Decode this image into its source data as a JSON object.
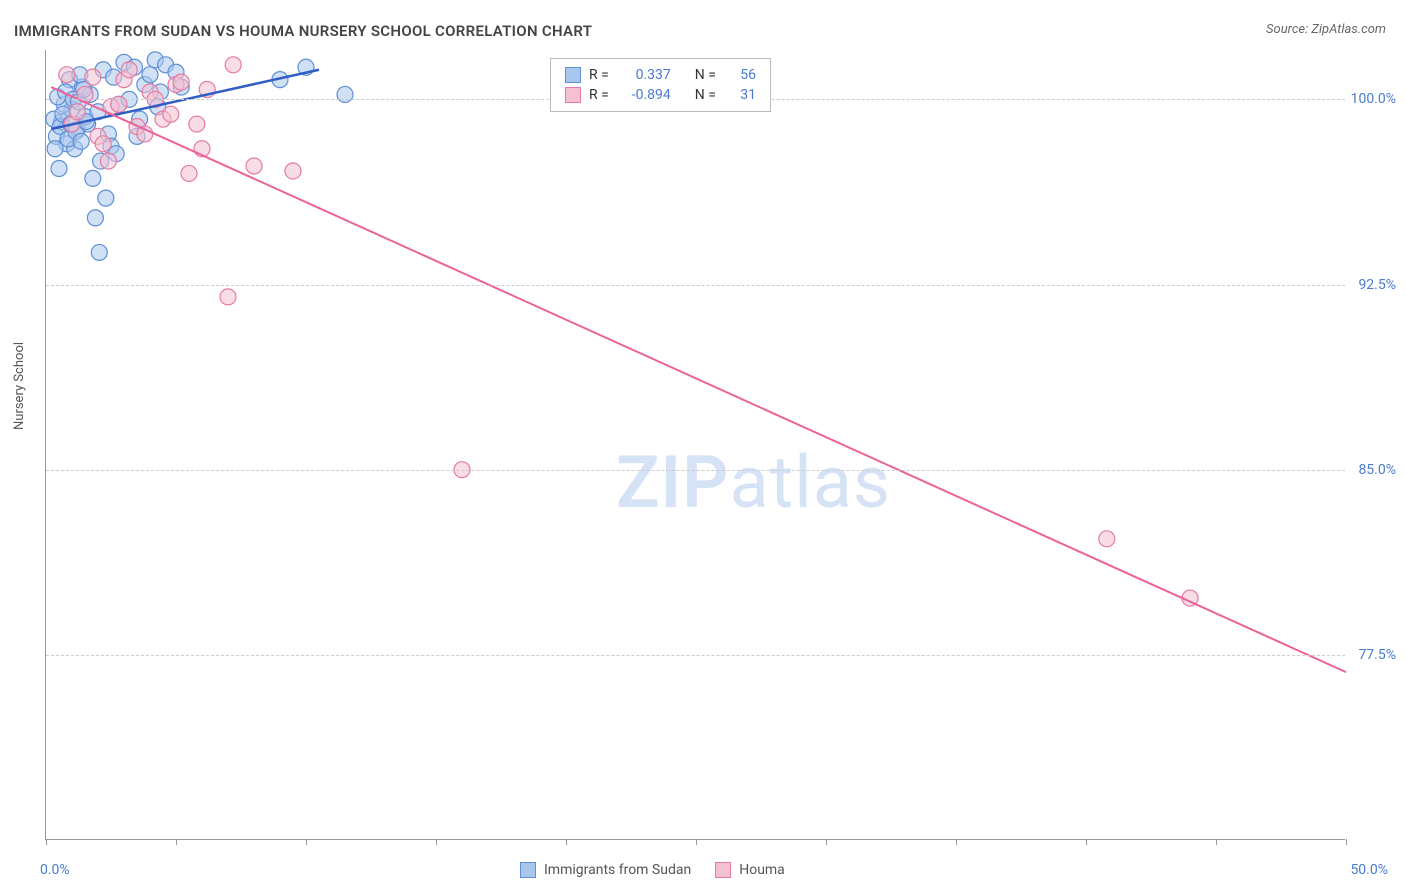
{
  "title": "IMMIGRANTS FROM SUDAN VS HOUMA NURSERY SCHOOL CORRELATION CHART",
  "source_label": "Source: ZipAtlas.com",
  "y_axis_label": "Nursery School",
  "watermark": {
    "bold": "ZIP",
    "light": "atlas"
  },
  "colors": {
    "series_a_fill": "#a9c6ed",
    "series_a_stroke": "#5f8fd6",
    "series_b_fill": "#f4c1d1",
    "series_b_stroke": "#e77aa3",
    "trend_a": "#2f5fc4",
    "trend_b": "#ec6399",
    "axis_text": "#4a7bd0",
    "grid": "#cccccc",
    "title_text": "#444444",
    "watermark": "#d6e2f5"
  },
  "chart": {
    "type": "scatter",
    "xlim": [
      0,
      50
    ],
    "ylim": [
      70,
      102
    ],
    "y_gridlines": [
      77.5,
      85.0,
      92.5,
      100.0
    ],
    "y_tick_labels": [
      "77.5%",
      "85.0%",
      "92.5%",
      "100.0%"
    ],
    "x_ticks": [
      0,
      5,
      10,
      15,
      20,
      25,
      30,
      35,
      40,
      45,
      50
    ],
    "x_tick_labels": {
      "0": "0.0%",
      "50": "50.0%"
    },
    "marker_radius": 8,
    "marker_opacity": 0.55,
    "line_width_a": 2.5,
    "line_width_b": 2,
    "series": {
      "a": {
        "label": "Immigrants from Sudan",
        "R": "0.337",
        "N": "56",
        "trend": {
          "x1": 0.2,
          "y1": 98.8,
          "x2": 10.5,
          "y2": 101.2
        },
        "points": [
          [
            0.4,
            98.5
          ],
          [
            0.6,
            99.1
          ],
          [
            0.8,
            98.2
          ],
          [
            1.0,
            99.6
          ],
          [
            1.2,
            98.8
          ],
          [
            1.4,
            100.5
          ],
          [
            1.6,
            99.0
          ],
          [
            0.5,
            97.2
          ],
          [
            0.7,
            99.8
          ],
          [
            0.9,
            100.8
          ],
          [
            1.1,
            98.0
          ],
          [
            1.3,
            101.0
          ],
          [
            1.5,
            99.3
          ],
          [
            1.7,
            100.2
          ],
          [
            2.0,
            99.5
          ],
          [
            2.2,
            101.2
          ],
          [
            2.4,
            98.6
          ],
          [
            2.6,
            100.9
          ],
          [
            2.8,
            99.8
          ],
          [
            3.0,
            101.5
          ],
          [
            3.2,
            100.0
          ],
          [
            3.4,
            101.3
          ],
          [
            3.6,
            99.2
          ],
          [
            3.8,
            100.6
          ],
          [
            4.0,
            101.0
          ],
          [
            4.2,
            101.6
          ],
          [
            4.4,
            100.3
          ],
          [
            4.6,
            101.4
          ],
          [
            1.8,
            96.8
          ],
          [
            2.1,
            97.5
          ],
          [
            2.3,
            96.0
          ],
          [
            2.5,
            98.1
          ],
          [
            1.9,
            95.2
          ],
          [
            2.7,
            97.8
          ],
          [
            2.05,
            93.8
          ],
          [
            0.3,
            99.2
          ],
          [
            0.35,
            98.0
          ],
          [
            0.45,
            100.1
          ],
          [
            0.55,
            98.9
          ],
          [
            0.65,
            99.4
          ],
          [
            0.75,
            100.3
          ],
          [
            0.85,
            98.4
          ],
          [
            0.95,
            99.0
          ],
          [
            1.05,
            100.0
          ],
          [
            1.15,
            98.7
          ],
          [
            1.25,
            99.9
          ],
          [
            1.35,
            98.3
          ],
          [
            1.45,
            100.4
          ],
          [
            1.55,
            99.1
          ],
          [
            9.0,
            100.8
          ],
          [
            10.0,
            101.3
          ],
          [
            11.5,
            100.2
          ],
          [
            3.5,
            98.5
          ],
          [
            4.3,
            99.7
          ],
          [
            5.0,
            101.1
          ],
          [
            5.2,
            100.5
          ]
        ]
      },
      "b": {
        "label": "Houma",
        "R": "-0.894",
        "N": "31",
        "trend": {
          "x1": 0.2,
          "y1": 100.5,
          "x2": 50.0,
          "y2": 76.8
        },
        "points": [
          [
            1.0,
            99.0
          ],
          [
            1.5,
            100.2
          ],
          [
            2.0,
            98.5
          ],
          [
            2.5,
            99.7
          ],
          [
            3.0,
            100.8
          ],
          [
            3.5,
            98.9
          ],
          [
            4.0,
            100.3
          ],
          [
            4.5,
            99.2
          ],
          [
            5.0,
            100.6
          ],
          [
            0.8,
            101.0
          ],
          [
            1.2,
            99.5
          ],
          [
            1.8,
            100.9
          ],
          [
            2.2,
            98.2
          ],
          [
            2.8,
            99.8
          ],
          [
            3.2,
            101.2
          ],
          [
            3.8,
            98.6
          ],
          [
            4.2,
            100.0
          ],
          [
            4.8,
            99.4
          ],
          [
            5.2,
            100.7
          ],
          [
            5.8,
            99.0
          ],
          [
            6.2,
            100.4
          ],
          [
            7.2,
            101.4
          ],
          [
            6.0,
            98.0
          ],
          [
            5.5,
            97.0
          ],
          [
            8.0,
            97.3
          ],
          [
            9.5,
            97.1
          ],
          [
            7.0,
            92.0
          ],
          [
            16.0,
            85.0
          ],
          [
            40.8,
            82.2
          ],
          [
            44.0,
            79.8
          ],
          [
            2.4,
            97.5
          ]
        ]
      }
    }
  },
  "legend_top": {
    "rows": [
      {
        "swatch": "a",
        "r_label": "R =",
        "n_label": "N ="
      },
      {
        "swatch": "b",
        "r_label": "R =",
        "n_label": "N ="
      }
    ]
  }
}
